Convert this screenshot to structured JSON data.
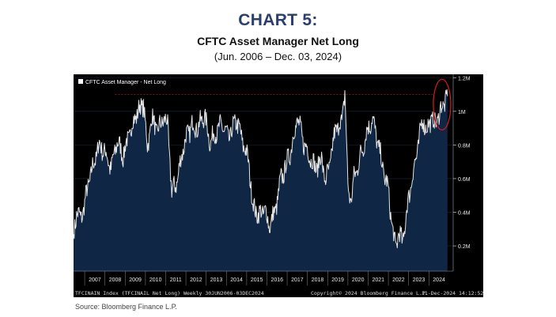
{
  "header": {
    "chart_number": "CHART 5:",
    "title": "CFTC Asset Manager Net Long",
    "subtitle": "(Jun. 2006 – Dec. 03, 2024)"
  },
  "footer": {
    "source": "Source: Bloomberg Finance L.P."
  },
  "colors": {
    "panel_bg": "#000000",
    "area_fill": "#0f2644",
    "line": "#e6e6e6",
    "accent_title": "#2a3f6e",
    "highlight_circle": "#e01b1b",
    "reference_line": "#8a1c1c"
  },
  "chart_data": {
    "type": "area",
    "title": "CFTC Asset Manager Net Long",
    "legend": {
      "label": "CFTC Asset Manager - Net Long",
      "placement": "top-left"
    },
    "ylabel": "",
    "xlabel": "",
    "ylim": [
      0.05,
      1.22
    ],
    "xlim": [
      2006.45,
      2025.2
    ],
    "y_ticks": [
      {
        "value": 0.2,
        "label": "0.2M"
      },
      {
        "value": 0.4,
        "label": "0.4M"
      },
      {
        "value": 0.6,
        "label": "0.6M"
      },
      {
        "value": 0.8,
        "label": "0.8M"
      },
      {
        "value": 1.0,
        "label": "1M"
      },
      {
        "value": 1.2,
        "label": "1.2M"
      }
    ],
    "x_ticks": [
      "2007",
      "2008",
      "2009",
      "2010",
      "2011",
      "2012",
      "2013",
      "2014",
      "2015",
      "2016",
      "2017",
      "2018",
      "2019",
      "2020",
      "2021",
      "2022",
      "2023",
      "2024"
    ],
    "reference_level": 1.1,
    "series": [
      {
        "name": "CFTC Asset Manager - Net Long",
        "x": [
          2006.45,
          2006.6,
          2006.8,
          2007.0,
          2007.2,
          2007.5,
          2007.7,
          2008.0,
          2008.3,
          2008.6,
          2008.9,
          2009.2,
          2009.5,
          2009.9,
          2010.1,
          2010.3,
          2010.6,
          2010.9,
          2011.1,
          2011.3,
          2011.6,
          2011.8,
          2012.0,
          2012.3,
          2012.6,
          2012.9,
          2013.2,
          2013.5,
          2013.8,
          2014.1,
          2014.5,
          2014.8,
          2015.1,
          2015.3,
          2015.6,
          2015.9,
          2016.1,
          2016.4,
          2016.7,
          2016.9,
          2017.2,
          2017.5,
          2017.8,
          2018.1,
          2018.4,
          2018.7,
          2018.9,
          2019.1,
          2019.4,
          2019.7,
          2019.85,
          2020.0,
          2020.15,
          2020.3,
          2020.6,
          2020.9,
          2021.2,
          2021.5,
          2021.8,
          2022.0,
          2022.2,
          2022.35,
          2022.5,
          2022.7,
          2022.9,
          2023.1,
          2023.3,
          2023.5,
          2023.7,
          2023.9,
          2024.1,
          2024.3,
          2024.5,
          2024.7,
          2024.92
        ],
        "values": [
          0.27,
          0.4,
          0.36,
          0.45,
          0.58,
          0.71,
          0.8,
          0.76,
          0.66,
          0.82,
          0.74,
          0.86,
          0.97,
          1.05,
          0.78,
          0.96,
          0.88,
          0.96,
          0.92,
          0.52,
          0.6,
          0.75,
          0.84,
          0.92,
          0.9,
          0.98,
          0.82,
          0.88,
          0.92,
          0.84,
          0.95,
          0.82,
          0.7,
          0.44,
          0.38,
          0.42,
          0.32,
          0.4,
          0.6,
          0.66,
          0.78,
          0.96,
          0.82,
          0.74,
          0.66,
          0.72,
          0.58,
          0.68,
          0.9,
          0.93,
          1.13,
          0.55,
          0.47,
          0.6,
          0.72,
          0.86,
          0.96,
          0.8,
          0.62,
          0.53,
          0.3,
          0.19,
          0.28,
          0.22,
          0.4,
          0.56,
          0.68,
          0.82,
          0.96,
          0.88,
          0.96,
          0.92,
          0.98,
          1.04,
          1.09
        ]
      }
    ],
    "annotations": [
      {
        "type": "circle",
        "around": "latest-values-2024",
        "color": "#e01b1b"
      }
    ]
  },
  "bloomberg": {
    "index_label": "TFCINAIN Index (TFCINAIL Net Long) Weekly 30JUN2006-03DEC2024",
    "copyright": "Copyright© 2024 Bloomberg Finance L.P.",
    "timestamp": "11-Dec-2024 14:12:52"
  }
}
